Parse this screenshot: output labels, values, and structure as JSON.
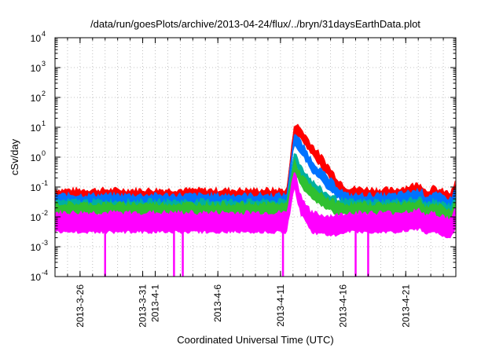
{
  "chart_data": {
    "type": "line",
    "title": "/data/run/goesPlots/archive/2013-04-24/flux/../bryn/31daysEarthData.plot",
    "xlabel": "Coordinated Universal Time (UTC)",
    "ylabel": "cSv/day",
    "yscale": "log",
    "ylim": [
      0.0001,
      10000
    ],
    "xlim": [
      "2013-03-24",
      "2013-04-25"
    ],
    "grid": true,
    "legend": "none",
    "x_ticks": [
      "2013-3-26",
      "2013-3-31",
      "2013-4-1",
      "2013-4-6",
      "2013-4-11",
      "2013-4-16",
      "2013-4-21"
    ],
    "y_ticks": [
      {
        "value": 0.0001,
        "base": "10",
        "exp": "-4"
      },
      {
        "value": 0.001,
        "base": "10",
        "exp": "-3"
      },
      {
        "value": 0.01,
        "base": "10",
        "exp": "-2"
      },
      {
        "value": 0.1,
        "base": "10",
        "exp": "-1"
      },
      {
        "value": 1,
        "base": "10",
        "exp": "0"
      },
      {
        "value": 10,
        "base": "10",
        "exp": "1"
      },
      {
        "value": 100,
        "base": "10",
        "exp": "2"
      },
      {
        "value": 1000,
        "base": "10",
        "exp": "3"
      },
      {
        "value": 10000,
        "base": "10",
        "exp": "4"
      }
    ],
    "series": [
      {
        "color": "#ff0000",
        "x": [
          "2013-03-24",
          "2013-03-30",
          "2013-04-05",
          "2013-04-11.5",
          "2013-04-12.1",
          "2013-04-12.6",
          "2013-04-13.5",
          "2013-04-14.5",
          "2013-04-15.5",
          "2013-04-16.3",
          "2013-04-20",
          "2013-04-22.2",
          "2013-04-22.6",
          "2013-04-23.2",
          "2013-04-24.6",
          "2013-04-25"
        ],
        "y": [
          0.06,
          0.06,
          0.06,
          0.06,
          10,
          7,
          2,
          0.6,
          0.15,
          0.07,
          0.06,
          0.1,
          0.055,
          0.07,
          0.045,
          0.12
        ]
      },
      {
        "color": "#0072ff",
        "x": [
          "2013-03-24",
          "2013-03-30",
          "2013-04-05",
          "2013-04-11.5",
          "2013-04-12.1",
          "2013-04-12.6",
          "2013-04-13.5",
          "2013-04-14.5",
          "2013-04-15.5",
          "2013-04-16.3",
          "2013-04-20",
          "2013-04-22.2",
          "2013-04-22.6",
          "2013-04-23.2",
          "2013-04-24.6",
          "2013-04-25"
        ],
        "y": [
          0.04,
          0.04,
          0.04,
          0.04,
          5,
          2.5,
          0.6,
          0.2,
          0.08,
          0.04,
          0.04,
          0.06,
          0.035,
          0.045,
          0.03,
          0.07
        ]
      },
      {
        "color": "#00b0a0",
        "x": [
          "2013-03-24",
          "2013-03-30",
          "2013-04-05",
          "2013-04-11.5",
          "2013-04-12.1",
          "2013-04-12.6",
          "2013-04-13.5",
          "2013-04-14.5",
          "2013-04-15.5",
          "2013-04-16.3",
          "2013-04-20",
          "2013-04-22.2",
          "2013-04-22.6",
          "2013-04-23.2",
          "2013-04-24.6",
          "2013-04-25"
        ],
        "y": [
          0.025,
          0.025,
          0.025,
          0.025,
          1.2,
          0.4,
          0.12,
          0.05,
          0.03,
          0.025,
          0.025,
          0.03,
          0.02,
          0.025,
          0.018,
          0.04
        ]
      },
      {
        "color": "#30c030",
        "x": [
          "2013-03-24",
          "2013-03-30",
          "2013-04-05",
          "2013-04-11.5",
          "2013-04-12.1",
          "2013-04-12.6",
          "2013-04-13.5",
          "2013-04-14.5",
          "2013-04-15.5",
          "2013-04-16.3",
          "2013-04-20",
          "2013-04-22.2",
          "2013-04-22.6",
          "2013-04-23.2",
          "2013-04-24.6",
          "2013-04-25"
        ],
        "y": [
          0.02,
          0.02,
          0.02,
          0.02,
          0.6,
          0.2,
          0.07,
          0.035,
          0.022,
          0.02,
          0.02,
          0.025,
          0.016,
          0.02,
          0.012,
          0.03
        ]
      },
      {
        "color": "#ff00ff",
        "x": [
          "2013-03-24",
          "2013-03-30",
          "2013-04-05",
          "2013-04-11.5",
          "2013-04-12.1",
          "2013-04-12.6",
          "2013-04-13.5",
          "2013-04-14.5",
          "2013-04-15.5",
          "2013-04-16.3",
          "2013-04-20",
          "2013-04-22.2",
          "2013-04-22.6",
          "2013-04-23.2",
          "2013-04-24.6",
          "2013-04-25"
        ],
        "y": [
          0.01,
          0.01,
          0.01,
          0.01,
          0.3,
          0.04,
          0.01,
          0.008,
          0.008,
          0.01,
          0.01,
          0.012,
          0.008,
          0.01,
          0.006,
          0.015
        ]
      }
    ],
    "dropouts": [
      {
        "series": "#ff00ff",
        "x": "2013-03-28",
        "y": 0.0001
      },
      {
        "series": "#ff00ff",
        "x": "2013-04-02.5",
        "y": 0.0001
      },
      {
        "series": "#ff00ff",
        "x": "2013-04-03.2",
        "y": 0.0001
      },
      {
        "series": "#ff00ff",
        "x": "2013-04-11.2",
        "y": 0.0001
      },
      {
        "series": "#ff00ff",
        "x": "2013-04-17",
        "y": 0.0001
      },
      {
        "series": "#ff00ff",
        "x": "2013-04-18",
        "y": 0.0001
      }
    ]
  }
}
